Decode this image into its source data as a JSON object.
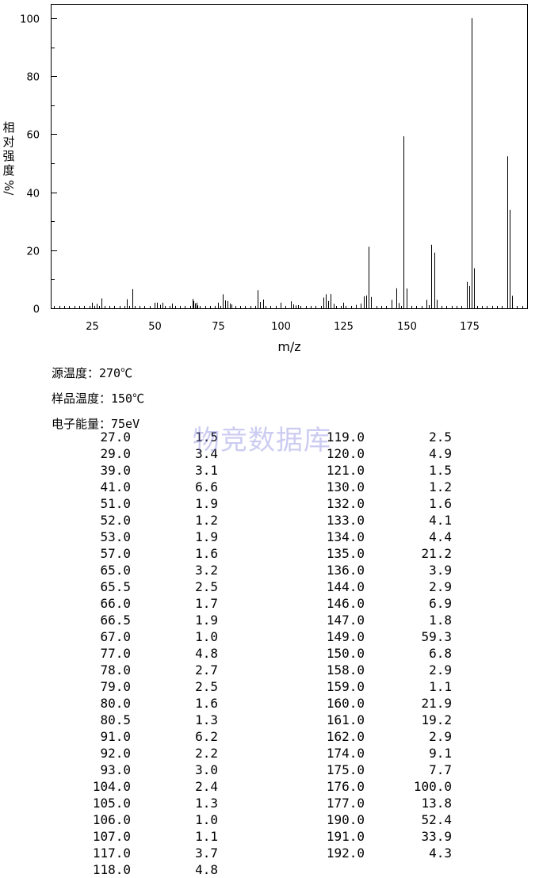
{
  "chart_data": {
    "type": "bar",
    "xlabel": "m/z",
    "ylabel_chars": [
      "相",
      "对",
      "强",
      "度"
    ],
    "ylabel_unit": "%/",
    "xlim": [
      9,
      198
    ],
    "ylim": [
      0,
      100
    ],
    "x_ticks": [
      "25",
      "50",
      "75",
      "100",
      "125",
      "150",
      "175"
    ],
    "y_ticks": [
      "0",
      "20",
      "40",
      "60",
      "80",
      "100"
    ],
    "x": [
      27.0,
      29.0,
      39.0,
      41.0,
      51.0,
      52.0,
      53.0,
      57.0,
      65.0,
      65.5,
      66.0,
      66.5,
      67.0,
      77.0,
      78.0,
      79.0,
      80.0,
      80.5,
      91.0,
      92.0,
      93.0,
      104.0,
      105.0,
      106.0,
      107.0,
      117.0,
      118.0,
      119.0,
      120.0,
      121.0,
      130.0,
      132.0,
      133.0,
      134.0,
      135.0,
      136.0,
      144.0,
      146.0,
      147.0,
      149.0,
      150.0,
      158.0,
      159.0,
      160.0,
      161.0,
      162.0,
      174.0,
      175.0,
      176.0,
      177.0,
      190.0,
      191.0,
      192.0
    ],
    "values": [
      1.5,
      3.4,
      3.1,
      6.6,
      1.9,
      1.2,
      1.9,
      1.6,
      3.2,
      2.5,
      1.7,
      1.9,
      1.0,
      4.8,
      2.7,
      2.5,
      1.6,
      1.3,
      6.2,
      2.2,
      3.0,
      2.4,
      1.3,
      1.0,
      1.1,
      3.7,
      4.8,
      2.5,
      4.9,
      1.5,
      1.2,
      1.6,
      4.1,
      4.4,
      21.2,
      3.9,
      2.9,
      6.9,
      1.8,
      59.3,
      6.8,
      2.9,
      1.1,
      21.9,
      19.2,
      2.9,
      9.1,
      7.7,
      100.0,
      13.8,
      52.4,
      33.9,
      4.3
    ]
  },
  "conditions": {
    "source_temp": "源温度：270℃",
    "sample_temp": "样品温度：150℃",
    "electron_energy": "电子能量：75eV"
  },
  "watermark": "物竞数据库",
  "table": {
    "left": [
      [
        "27.0",
        "1.5"
      ],
      [
        "29.0",
        "3.4"
      ],
      [
        "39.0",
        "3.1"
      ],
      [
        "41.0",
        "6.6"
      ],
      [
        "51.0",
        "1.9"
      ],
      [
        "52.0",
        "1.2"
      ],
      [
        "53.0",
        "1.9"
      ],
      [
        "57.0",
        "1.6"
      ],
      [
        "65.0",
        "3.2"
      ],
      [
        "65.5",
        "2.5"
      ],
      [
        "66.0",
        "1.7"
      ],
      [
        "66.5",
        "1.9"
      ],
      [
        "67.0",
        "1.0"
      ],
      [
        "77.0",
        "4.8"
      ],
      [
        "78.0",
        "2.7"
      ],
      [
        "79.0",
        "2.5"
      ],
      [
        "80.0",
        "1.6"
      ],
      [
        "80.5",
        "1.3"
      ],
      [
        "91.0",
        "6.2"
      ],
      [
        "92.0",
        "2.2"
      ],
      [
        "93.0",
        "3.0"
      ],
      [
        "104.0",
        "2.4"
      ],
      [
        "105.0",
        "1.3"
      ],
      [
        "106.0",
        "1.0"
      ],
      [
        "107.0",
        "1.1"
      ],
      [
        "117.0",
        "3.7"
      ],
      [
        "118.0",
        "4.8"
      ]
    ],
    "right": [
      [
        "119.0",
        "2.5"
      ],
      [
        "120.0",
        "4.9"
      ],
      [
        "121.0",
        "1.5"
      ],
      [
        "130.0",
        "1.2"
      ],
      [
        "132.0",
        "1.6"
      ],
      [
        "133.0",
        "4.1"
      ],
      [
        "134.0",
        "4.4"
      ],
      [
        "135.0",
        "21.2"
      ],
      [
        "136.0",
        "3.9"
      ],
      [
        "144.0",
        "2.9"
      ],
      [
        "146.0",
        "6.9"
      ],
      [
        "147.0",
        "1.8"
      ],
      [
        "149.0",
        "59.3"
      ],
      [
        "150.0",
        "6.8"
      ],
      [
        "158.0",
        "2.9"
      ],
      [
        "159.0",
        "1.1"
      ],
      [
        "160.0",
        "21.9"
      ],
      [
        "161.0",
        "19.2"
      ],
      [
        "162.0",
        "2.9"
      ],
      [
        "174.0",
        "9.1"
      ],
      [
        "175.0",
        "7.7"
      ],
      [
        "176.0",
        "100.0"
      ],
      [
        "177.0",
        "13.8"
      ],
      [
        "190.0",
        "52.4"
      ],
      [
        "191.0",
        "33.9"
      ],
      [
        "192.0",
        "4.3"
      ]
    ]
  }
}
